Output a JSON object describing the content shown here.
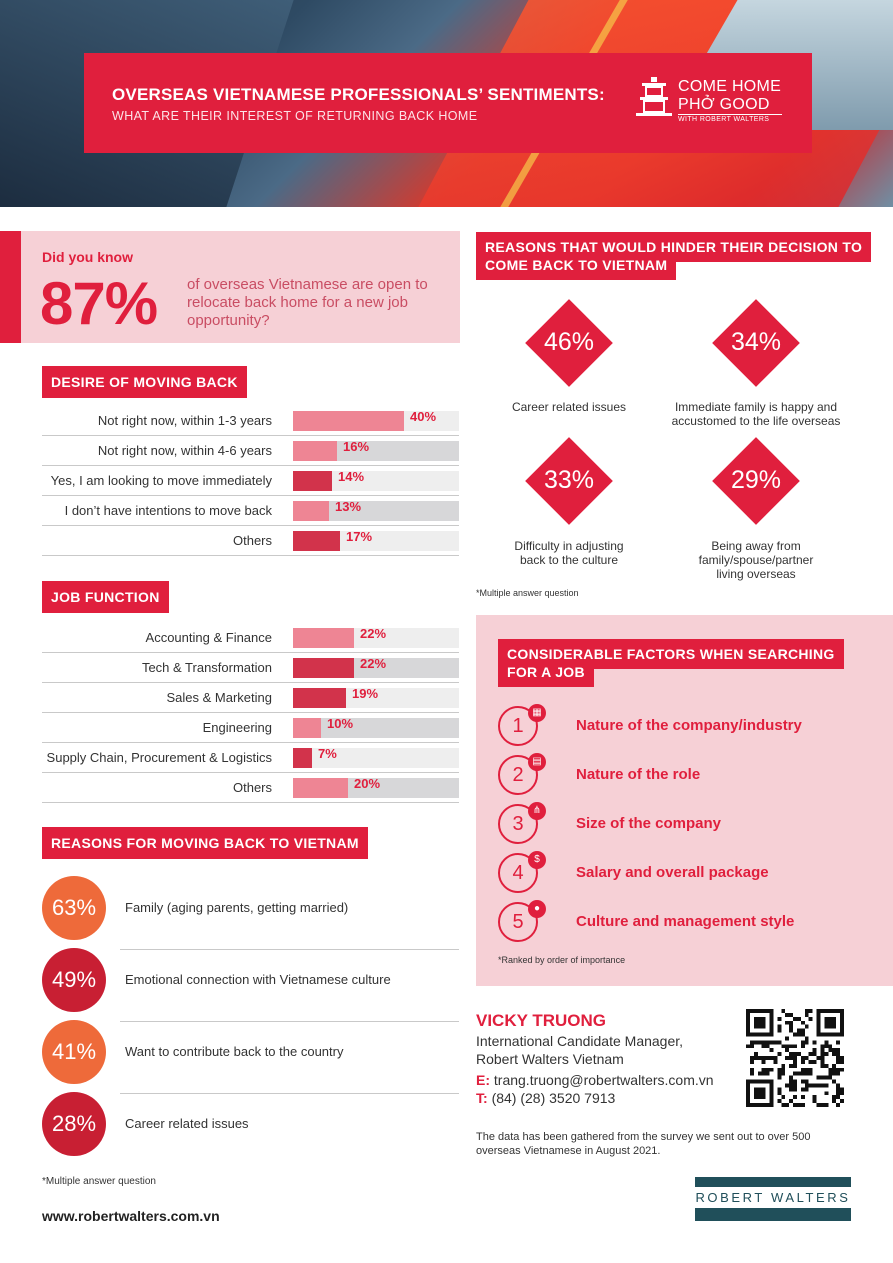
{
  "header": {
    "title": "OVERSEAS VIETNAMESE PROFESSIONALS’ SENTIMENTS:",
    "subtitle": "WHAT ARE THEIR INTEREST OF RETURNING BACK HOME",
    "logo_line1": "COME HOME",
    "logo_line2": "PHỞ GOOD",
    "logo_line3": "WITH ROBERT WALTERS"
  },
  "did_you_know": {
    "question": "Did you know",
    "percent": "87%",
    "text": "of overseas Vietnamese are open to relocate back home for a new job opportunity?"
  },
  "desire": {
    "heading": "DESIRE OF MOVING BACK",
    "rows": [
      {
        "label": "Not right now, within 1-3 years",
        "value": 40,
        "text": "40%",
        "color": "#ee8594"
      },
      {
        "label": "Not right now, within 4-6 years",
        "value": 16,
        "text": "16%",
        "color": "#ee8594"
      },
      {
        "label": "Yes, I am looking to move immediately",
        "value": 14,
        "text": "14%",
        "color": "#d2334b"
      },
      {
        "label": "I don’t have intentions to move back",
        "value": 13,
        "text": "13%",
        "color": "#ee8594"
      },
      {
        "label": "Others",
        "value": 17,
        "text": "17%",
        "color": "#d2334b"
      }
    ]
  },
  "job": {
    "heading": "JOB FUNCTION",
    "rows": [
      {
        "label": "Accounting & Finance",
        "value": 22,
        "text": "22%",
        "color": "#ee8594"
      },
      {
        "label": "Tech & Transformation",
        "value": 22,
        "text": "22%",
        "color": "#d2334b"
      },
      {
        "label": "Sales & Marketing",
        "value": 19,
        "text": "19%",
        "color": "#d2334b"
      },
      {
        "label": "Engineering",
        "value": 10,
        "text": "10%",
        "color": "#ee8594"
      },
      {
        "label": "Supply Chain, Procurement & Logistics",
        "value": 7,
        "text": "7%",
        "color": "#d2334b"
      },
      {
        "label": "Others",
        "value": 20,
        "text": "20%",
        "color": "#ee8594"
      }
    ]
  },
  "reasons_back": {
    "heading": "REASONS FOR MOVING BACK TO VIETNAM",
    "items": [
      {
        "pct": "63%",
        "text": "Family (aging parents, getting married)",
        "color": "#ee6a3a"
      },
      {
        "pct": "49%",
        "text": "Emotional connection with Vietnamese culture",
        "color": "#c81f33"
      },
      {
        "pct": "41%",
        "text": "Want to contribute back to the country",
        "color": "#ee6a3a"
      },
      {
        "pct": "28%",
        "text": "Career related issues",
        "color": "#c81f33"
      }
    ],
    "footnote": "*Multiple answer question"
  },
  "hinder": {
    "heading_line1": "REASONS THAT WOULD HINDER THEIR DECISION TO",
    "heading_line2": "COME BACK TO VIETNAM",
    "items": [
      {
        "pct": "46%",
        "caption": [
          "Career related issues"
        ]
      },
      {
        "pct": "34%",
        "caption": [
          "Immediate family is happy and",
          "accustomed to the life overseas"
        ]
      },
      {
        "pct": "33%",
        "caption": [
          "Difficulty in adjusting",
          "back to the culture"
        ]
      },
      {
        "pct": "29%",
        "caption": [
          "Being away from",
          "family/spouse/partner",
          "living overseas"
        ]
      }
    ],
    "footnote": "*Multiple answer question"
  },
  "factors": {
    "heading_line1": "CONSIDERABLE FACTORS WHEN SEARCHING",
    "heading_line2": "FOR A JOB",
    "items": [
      {
        "num": "1",
        "text": "Nature of the company/industry",
        "icon": "building-icon"
      },
      {
        "num": "2",
        "text": "Nature of the role",
        "icon": "document-icon"
      },
      {
        "num": "3",
        "text": "Size of the company",
        "icon": "org-chart-icon"
      },
      {
        "num": "4",
        "text": "Salary and overall package",
        "icon": "money-hand-icon"
      },
      {
        "num": "5",
        "text": "Culture and management style",
        "icon": "people-icon"
      }
    ],
    "footnote": "*Ranked by order of importance"
  },
  "contact": {
    "name": "VICKY TRUONG",
    "role_line1": "International Candidate Manager,",
    "role_line2": "Robert Walters Vietnam",
    "email_label": "E:",
    "email": "trang.truong@robertwalters.com.vn",
    "phone_label": "T:",
    "phone": "(84) (28) 3520 7913"
  },
  "note": "The data has been gathered from the survey we sent out to over 500 overseas Vietnamese in August 2021.",
  "website": "www.robertwalters.com.vn",
  "brand": "ROBERT WALTERS",
  "colors": {
    "accent": "#e01f3d",
    "pink_bg": "#f6d0d6",
    "brand_teal": "#204f5a",
    "orange": "#ee6a3a"
  }
}
